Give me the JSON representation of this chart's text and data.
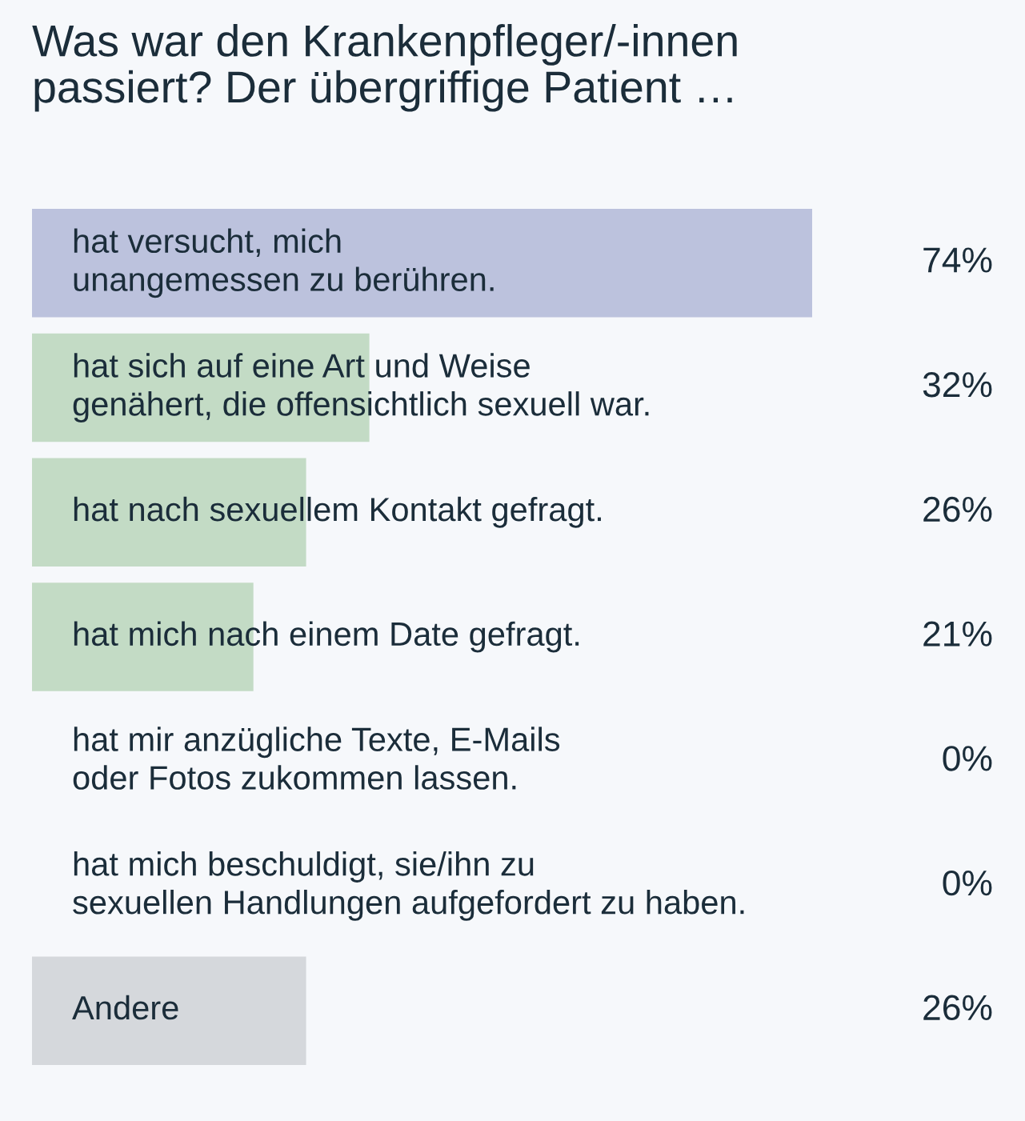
{
  "chart_data": {
    "type": "bar",
    "orientation": "horizontal",
    "title": "Was war den Krankenpfleger/-innen\npassiert? Der übergriffige Patient …",
    "categories": [
      "hat versucht, mich\nunangemessen zu berühren.",
      "hat sich auf eine Art und Weise\ngenähert, die offensichtlich sexuell war.",
      "hat nach sexuellem Kontakt gefragt.",
      "hat mich nach einem Date gefragt.",
      "hat mir anzügliche Texte, E-Mails\noder Fotos zukommen lassen.",
      "hat mich beschuldigt, sie/ihn zu\nsexuellen Handlungen aufgefordert zu haben.",
      "Andere"
    ],
    "values": [
      74,
      32,
      26,
      21,
      0,
      0,
      26
    ],
    "colors": [
      "#bcc2dd",
      "#c3dbc5",
      "#c3dbc5",
      "#c3dbc5",
      "#c3dbc5",
      "#c3dbc5",
      "#d5d8dc"
    ],
    "value_labels": [
      "74%",
      "32%",
      "26%",
      "21%",
      "0%",
      "0%",
      "26%"
    ],
    "xlim": [
      0,
      74
    ]
  }
}
